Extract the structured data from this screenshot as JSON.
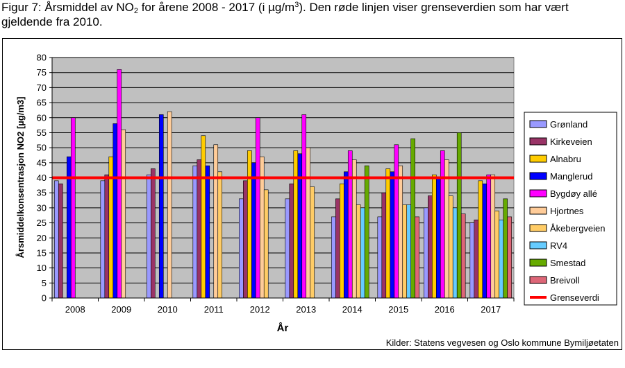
{
  "caption": {
    "part1": "Figur 7: Årsmiddel av NO",
    "sub": "2",
    "part2": " for årene 2008 - 2017 (i µg/m",
    "sup": "3",
    "part3": "). Den røde linjen viser grenseverdien som har vært gjeldende fra 2010."
  },
  "source": "Kilder: Statens vegvesen og Oslo kommune Bymiljøetaten",
  "chart_data": {
    "type": "bar",
    "title": "",
    "xlabel": "År",
    "ylabel": "Årsmiddelkonsentrasjon NO2 [µg/m3]",
    "ylim": [
      0,
      80
    ],
    "ytick_step": 5,
    "grid": true,
    "legend_position": "right",
    "plot_background": "#c0c0c0",
    "categories": [
      "2008",
      "2009",
      "2010",
      "2011",
      "2012",
      "2013",
      "2014",
      "2015",
      "2016",
      "2017"
    ],
    "series": [
      {
        "name": "Grønland",
        "color": "#9999ff",
        "values": [
          39,
          39,
          41,
          44,
          33,
          33,
          27,
          27,
          30,
          25
        ]
      },
      {
        "name": "Kirkeveien",
        "color": "#993366",
        "values": [
          38,
          41,
          43,
          46,
          39,
          38,
          33,
          35,
          34,
          26
        ]
      },
      {
        "name": "Alnabru",
        "color": "#ffcc00",
        "values": [
          null,
          47,
          null,
          54,
          49,
          49,
          38,
          43,
          41,
          39
        ]
      },
      {
        "name": "Manglerud",
        "color": "#0000ff",
        "values": [
          47,
          58,
          61,
          44,
          45,
          48,
          42,
          42,
          40,
          38
        ]
      },
      {
        "name": "Bygdøy allé",
        "color": "#ff00ff",
        "values": [
          60,
          76,
          null,
          null,
          60,
          61,
          49,
          51,
          49,
          41
        ]
      },
      {
        "name": "Hjortnes",
        "color": "#ffcc99",
        "values": [
          null,
          56,
          62,
          51,
          47,
          50,
          46,
          44,
          46,
          41
        ]
      },
      {
        "name": "Åkebergveien",
        "color": "#ffcc66",
        "values": [
          null,
          null,
          null,
          42,
          36,
          37,
          31,
          31,
          34,
          29
        ]
      },
      {
        "name": "RV4",
        "color": "#66ccff",
        "values": [
          null,
          null,
          null,
          null,
          null,
          null,
          30,
          31,
          30,
          26
        ]
      },
      {
        "name": "Smestad",
        "color": "#66aa00",
        "values": [
          null,
          null,
          null,
          null,
          null,
          null,
          44,
          53,
          55,
          33
        ]
      },
      {
        "name": "Breivoll",
        "color": "#dd6677",
        "values": [
          null,
          null,
          null,
          null,
          null,
          null,
          null,
          27,
          28,
          27
        ]
      }
    ],
    "threshold": {
      "name": "Grenseverdi",
      "value": 40,
      "color": "#ff0000"
    }
  }
}
